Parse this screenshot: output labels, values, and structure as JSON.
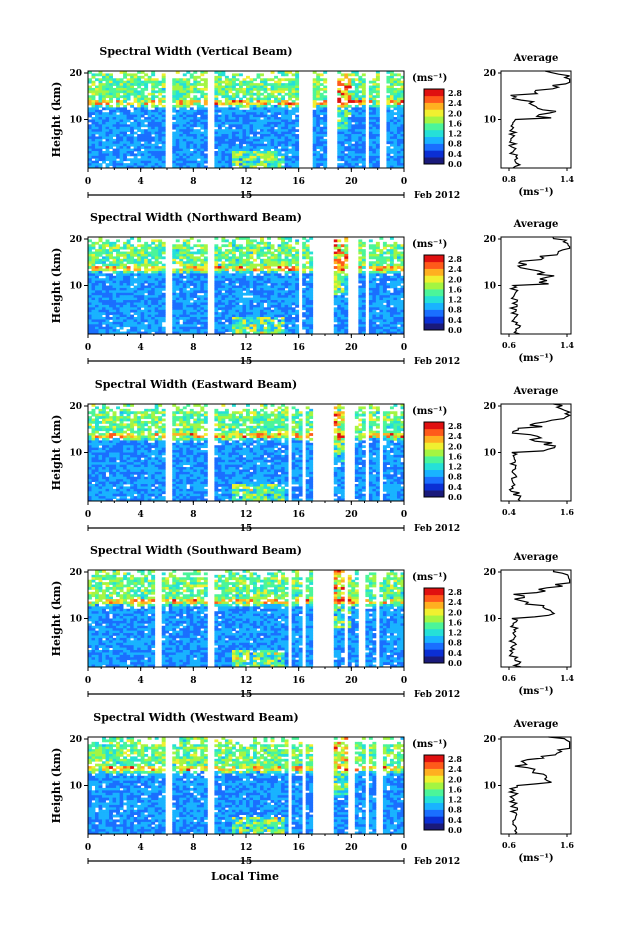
{
  "chart_data": [
    {
      "type": "heatmap",
      "title": "Spectral Width (Vertical Beam)",
      "ylabel": "Height (km)",
      "yticks": [
        "20",
        "10"
      ],
      "xticks": [
        "0",
        "4",
        "8",
        "12",
        "16",
        "20",
        "0"
      ],
      "day_label": "15",
      "date_label": "Feb 2012",
      "colorbar": {
        "unit": "(ms⁻¹)",
        "ticks": [
          "2.8",
          "2.4",
          "2.0",
          "1.6",
          "1.2",
          "0.8",
          "0.4",
          "0.0"
        ]
      },
      "profile": {
        "title": "Average",
        "xticks": [
          "0.8",
          "1.4"
        ],
        "xlabel": "(ms⁻¹)",
        "yticks": [
          "20",
          "10"
        ]
      },
      "gaps_hours": [
        [
          5.8,
          6.5
        ],
        [
          9.0,
          9.6
        ],
        [
          16.0,
          17.1
        ],
        [
          18.2,
          19.0
        ],
        [
          21.0,
          21.4
        ],
        [
          22.2,
          22.6
        ]
      ]
    },
    {
      "type": "heatmap",
      "title": "Spectral Width (Northward Beam)",
      "ylabel": "Height (km)",
      "yticks": [
        "20",
        "10"
      ],
      "xticks": [
        "0",
        "4",
        "8",
        "12",
        "16",
        "20",
        "0"
      ],
      "day_label": "15",
      "date_label": "Feb 2012",
      "colorbar": {
        "unit": "(ms⁻¹)",
        "ticks": [
          "2.8",
          "2.4",
          "2.0",
          "1.6",
          "1.2",
          "0.8",
          "0.4",
          "0.0"
        ]
      },
      "profile": {
        "title": "Average",
        "xticks": [
          "0.6",
          "1.4"
        ],
        "xlabel": "(ms⁻¹)",
        "yticks": [
          "20",
          "10"
        ]
      },
      "gaps_hours": [
        [
          5.8,
          6.5
        ],
        [
          9.0,
          9.6
        ],
        [
          16.0,
          16.3
        ],
        [
          17.0,
          18.6
        ],
        [
          19.7,
          20.4
        ],
        [
          21.0,
          21.4
        ]
      ]
    },
    {
      "type": "heatmap",
      "title": "Spectral Width (Eastward Beam)",
      "ylabel": "Height (km)",
      "yticks": [
        "20",
        "10"
      ],
      "xticks": [
        "0",
        "4",
        "8",
        "12",
        "16",
        "20",
        "0"
      ],
      "day_label": "15",
      "date_label": "Feb 2012",
      "colorbar": {
        "unit": "(ms⁻¹)",
        "ticks": [
          "2.8",
          "2.4",
          "2.0",
          "1.6",
          "1.2",
          "0.8",
          "0.4",
          "0.0"
        ]
      },
      "profile": {
        "title": "Average",
        "xticks": [
          "0.4",
          "1.6"
        ],
        "xlabel": "",
        "yticks": [
          "20",
          "10"
        ]
      },
      "gaps_hours": [
        [
          5.8,
          6.5
        ],
        [
          9.0,
          9.6
        ],
        [
          15.3,
          15.6
        ],
        [
          16.2,
          16.4
        ],
        [
          17.0,
          18.6
        ],
        [
          19.6,
          20.3
        ],
        [
          21.0,
          21.4
        ],
        [
          22.1,
          22.5
        ]
      ]
    },
    {
      "type": "heatmap",
      "title": "Spectral Width (Southward Beam)",
      "ylabel": "Height (km)",
      "yticks": [
        "20",
        "10"
      ],
      "xticks": [
        "0",
        "4",
        "8",
        "12",
        "16",
        "20",
        "0"
      ],
      "day_label": "15",
      "date_label": "Feb 2012",
      "colorbar": {
        "unit": "(ms⁻¹)",
        "ticks": [
          "2.8",
          "2.4",
          "2.0",
          "1.6",
          "1.2",
          "0.8",
          "0.4",
          "0.0"
        ]
      },
      "profile": {
        "title": "Average",
        "xticks": [
          "0.6",
          "1.4"
        ],
        "xlabel": "(ms⁻¹)",
        "yticks": [
          "20",
          "10"
        ]
      },
      "gaps_hours": [
        [
          5.0,
          5.6
        ],
        [
          9.0,
          9.6
        ],
        [
          15.3,
          15.5
        ],
        [
          16.3,
          16.5
        ],
        [
          17.1,
          18.6
        ],
        [
          19.5,
          19.7
        ],
        [
          20.6,
          21.0
        ],
        [
          21.8,
          22.2
        ]
      ]
    },
    {
      "type": "heatmap",
      "title": "Spectral Width (Westward Beam)",
      "ylabel": "Height (km)",
      "yticks": [
        "20",
        "10"
      ],
      "xticks": [
        "0",
        "4",
        "8",
        "12",
        "16",
        "20",
        "0"
      ],
      "day_label": "15",
      "date_label": "Feb 2012",
      "colorbar": {
        "unit": "(ms⁻¹)",
        "ticks": [
          "2.8",
          "2.4",
          "2.0",
          "1.6",
          "1.2",
          "0.8",
          "0.4",
          "0.0"
        ]
      },
      "profile": {
        "title": "Average",
        "xticks": [
          "0.6",
          "1.6"
        ],
        "xlabel": "(ms⁻¹)",
        "yticks": [
          "20",
          "10"
        ]
      },
      "gaps_hours": [
        [
          5.8,
          6.5
        ],
        [
          9.0,
          9.6
        ],
        [
          15.3,
          15.6
        ],
        [
          16.2,
          16.5
        ],
        [
          17.1,
          18.6
        ],
        [
          19.7,
          20.2
        ],
        [
          21.0,
          21.3
        ],
        [
          22.0,
          22.3
        ]
      ]
    }
  ],
  "xlabel": "Local Time",
  "colors": {
    "scale": [
      "#1a1a7a",
      "#0b2fd4",
      "#1a6fff",
      "#19b3ff",
      "#25e0d8",
      "#4bf59a",
      "#a4f542",
      "#f0f030",
      "#ffb020",
      "#ff5a1a",
      "#e01010"
    ],
    "line": "#000000"
  }
}
